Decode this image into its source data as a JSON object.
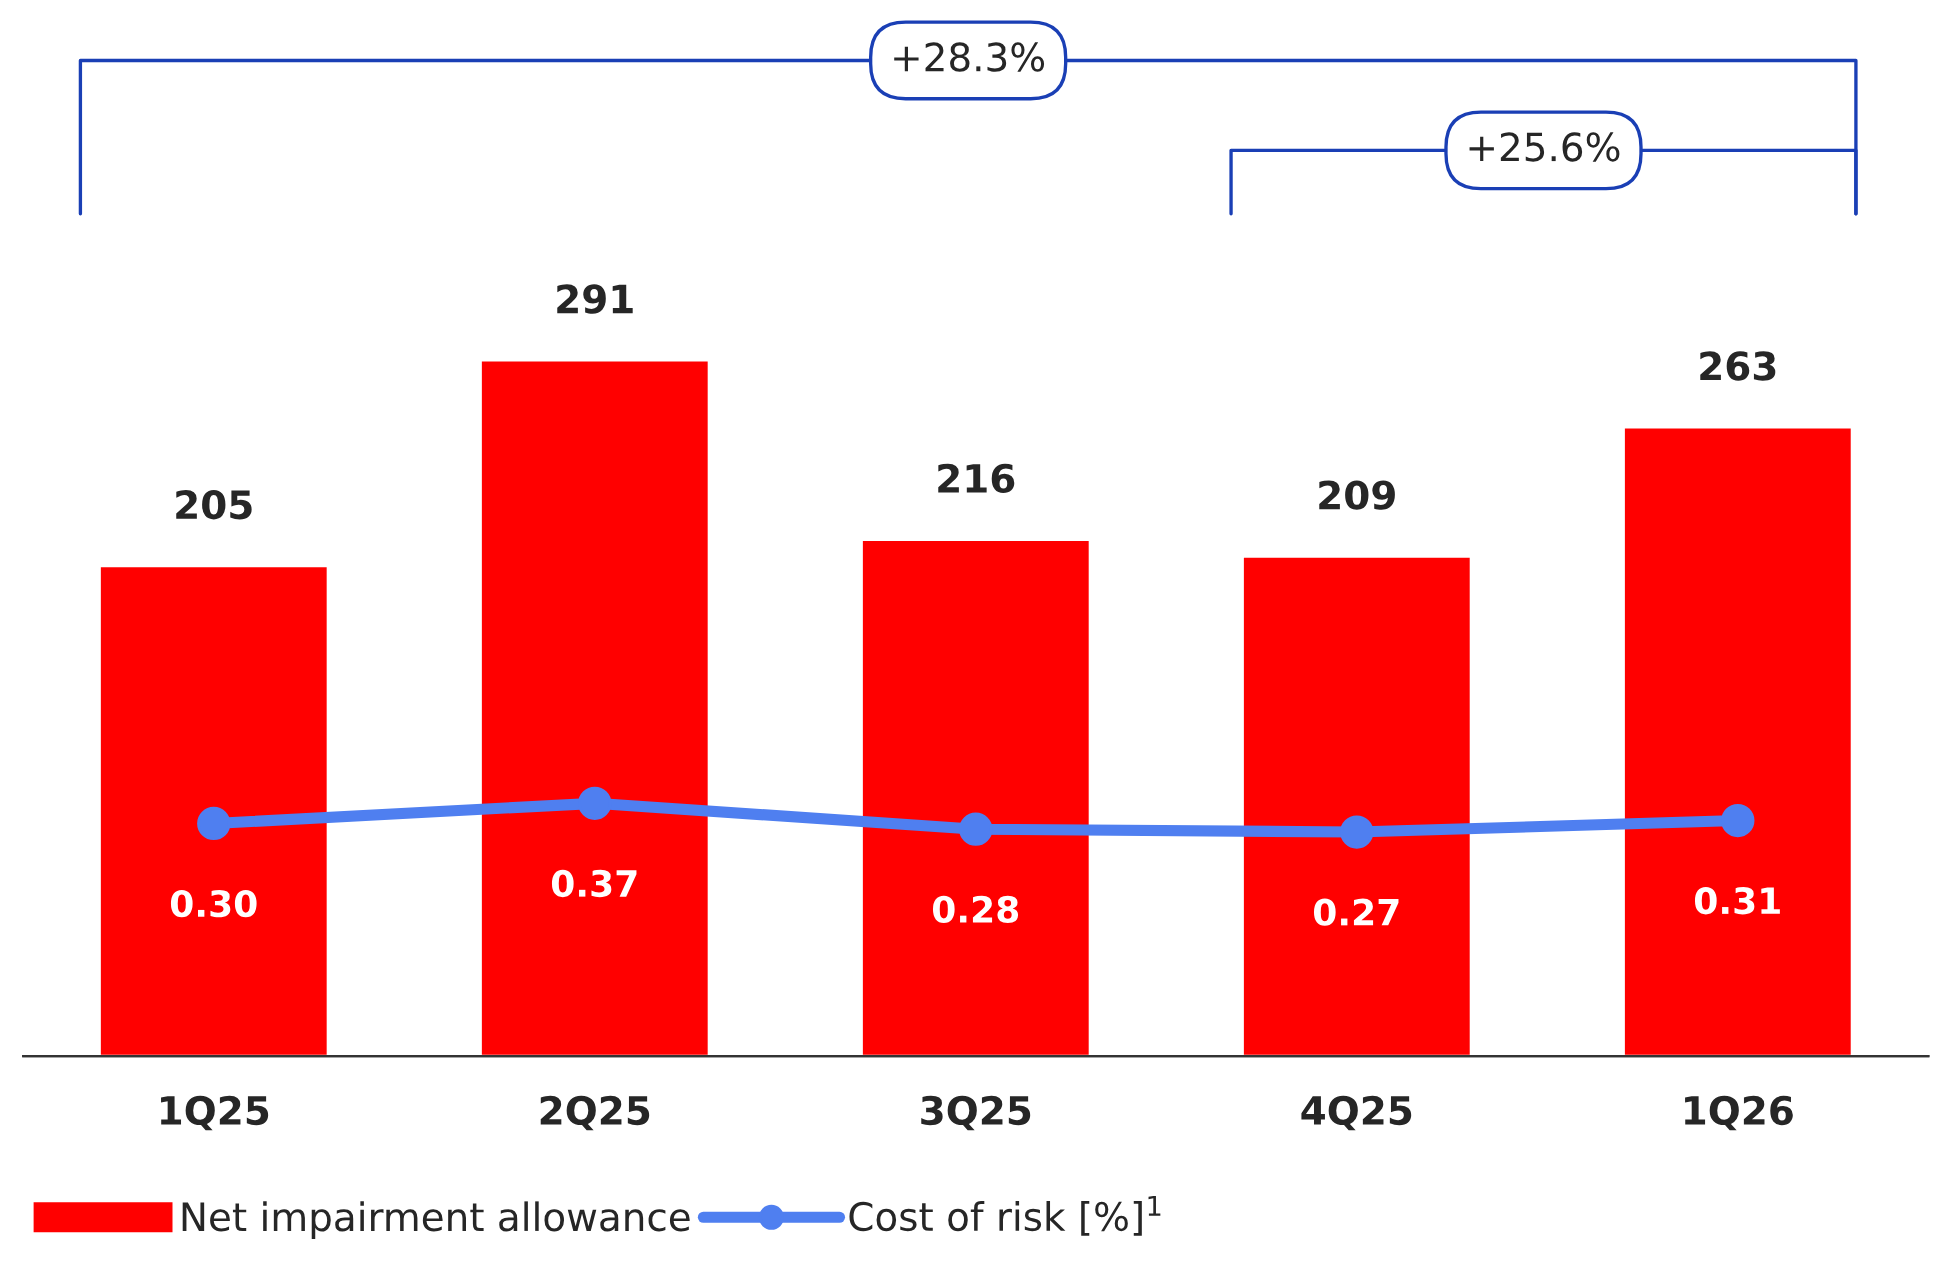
{
  "chart_data": {
    "type": "bar",
    "categories": [
      "1Q25",
      "2Q25",
      "3Q25",
      "4Q25",
      "1Q26"
    ],
    "series": [
      {
        "name": "Net impairment allowance",
        "color": "#ff0000",
        "values": [
          205,
          291,
          216,
          209,
          263
        ]
      },
      {
        "name": "Cost of risk [%]$^{1}$",
        "type": "line",
        "axis": "y2",
        "color": "#4f7ff0",
        "values": [
          0.3,
          0.37,
          0.28,
          0.27,
          0.31
        ],
        "value_labels": [
          "0.30",
          "0.37",
          "0.28",
          "0.27",
          "0.31"
        ]
      }
    ],
    "data_labels": true,
    "tick_labels": "x",
    "grid": false,
    "legend": "bottom left",
    "marker": "circle",
    "line_style": "solid",
    "annotations": [
      "+28.3%",
      "+25.6%"
    ]
  }
}
